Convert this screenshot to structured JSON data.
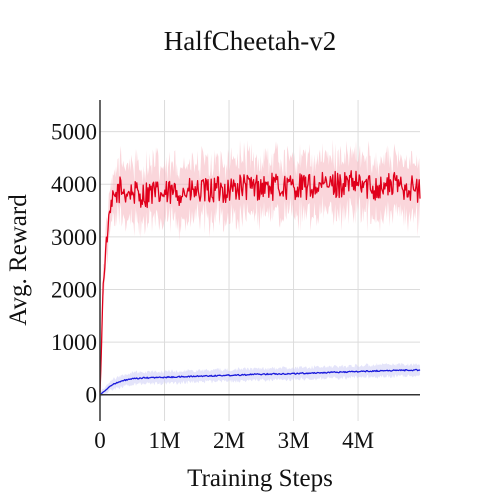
{
  "chart_data": {
    "type": "line",
    "title": "HalfCheetah-v2",
    "xlabel": "Training Steps",
    "ylabel": "Avg. Reward",
    "xlim": [
      0,
      4960000
    ],
    "ylim": [
      -500,
      5600
    ],
    "x_ticks": [
      0,
      1000000,
      2000000,
      3000000,
      4000000
    ],
    "x_tick_labels": [
      "0",
      "1M",
      "2M",
      "3M",
      "4M"
    ],
    "y_ticks": [
      0,
      1000,
      2000,
      3000,
      4000,
      5000
    ],
    "y_tick_labels": [
      "0",
      "1000",
      "2000",
      "3000",
      "4000",
      "5000"
    ],
    "grid": true,
    "series": [
      {
        "color": "#e0001b",
        "band_color": "#f5b5bd",
        "x": [
          0,
          50000,
          100000,
          150000,
          200000,
          300000,
          400000,
          500000,
          600000,
          700000,
          800000,
          900000,
          1000000,
          1200000,
          1400000,
          1600000,
          1800000,
          2000000,
          2200000,
          2400000,
          2600000,
          2800000,
          3000000,
          3200000,
          3400000,
          3600000,
          3800000,
          4000000,
          4200000,
          4400000,
          4600000,
          4800000,
          4960000
        ],
        "values": [
          0,
          2100,
          2900,
          3400,
          3700,
          3900,
          3850,
          3850,
          3800,
          3800,
          3850,
          3800,
          3800,
          3850,
          3850,
          3850,
          3900,
          3900,
          3950,
          3950,
          3950,
          3950,
          3950,
          3950,
          3950,
          4000,
          4000,
          4000,
          3950,
          3950,
          4000,
          3950,
          3850
        ],
        "noise": 260,
        "band": 520
      },
      {
        "color": "#1a1adb",
        "band_color": "#cdcdf5",
        "x": [
          0,
          100000,
          200000,
          300000,
          400000,
          500000,
          700000,
          1000000,
          1500000,
          2000000,
          2500000,
          3000000,
          3500000,
          4000000,
          4500000,
          4960000
        ],
        "values": [
          0,
          100,
          200,
          240,
          280,
          300,
          320,
          330,
          350,
          370,
          390,
          400,
          420,
          440,
          460,
          470
        ],
        "noise": 12,
        "band": 110
      }
    ]
  }
}
